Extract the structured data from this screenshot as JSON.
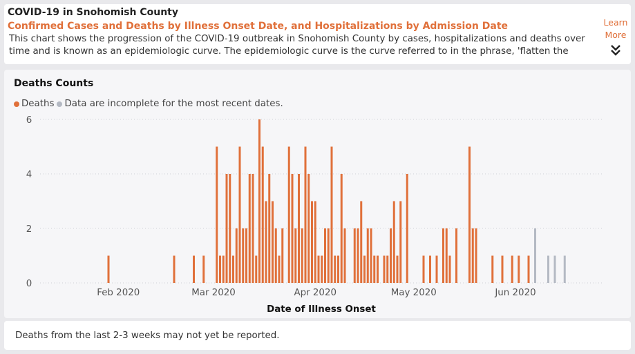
{
  "header": {
    "title": "COVID-19 in Snohomish County",
    "subtitle": "Confirmed Cases and Deaths by Illness Onset Date, and Hospitalizations by Admission Date",
    "description": "This chart shows the progression of the COVID-19 outbreak in Snohomish County by cases, hospitalizations and deaths over time and is known as an epidemiologic curve. The epidemiologic curve is the curve referred to in the phrase, 'flatten the curve'.",
    "learn_more": "Learn More",
    "expand_icon": "double-chevron-down-icon"
  },
  "chart_data": {
    "type": "bar",
    "title": "Deaths Counts",
    "xlabel": "Date of Illness Onset",
    "ylabel": "",
    "ylim": [
      0,
      6
    ],
    "yticks": [
      "0",
      "2",
      "4",
      "6"
    ],
    "xticks": [
      {
        "label": "Feb 2020",
        "date": "2020-02-01"
      },
      {
        "label": "Mar 2020",
        "date": "2020-03-01"
      },
      {
        "label": "Apr 2020",
        "date": "2020-04-01"
      },
      {
        "label": "May 2020",
        "date": "2020-05-01"
      },
      {
        "label": "Jun 2020",
        "date": "2020-06-01"
      }
    ],
    "legend_position": "top-left",
    "grid": true,
    "series": [
      {
        "name": "Deaths",
        "color": "#e0703a",
        "points": [
          [
            "2020-01-29",
            1
          ],
          [
            "2020-02-18",
            1
          ],
          [
            "2020-02-24",
            1
          ],
          [
            "2020-02-27",
            1
          ],
          [
            "2020-03-02",
            5
          ],
          [
            "2020-03-03",
            1
          ],
          [
            "2020-03-04",
            1
          ],
          [
            "2020-03-05",
            4
          ],
          [
            "2020-03-06",
            4
          ],
          [
            "2020-03-07",
            1
          ],
          [
            "2020-03-08",
            2
          ],
          [
            "2020-03-09",
            5
          ],
          [
            "2020-03-10",
            2
          ],
          [
            "2020-03-11",
            2
          ],
          [
            "2020-03-12",
            4
          ],
          [
            "2020-03-13",
            4
          ],
          [
            "2020-03-14",
            1
          ],
          [
            "2020-03-15",
            6
          ],
          [
            "2020-03-16",
            5
          ],
          [
            "2020-03-17",
            3
          ],
          [
            "2020-03-18",
            4
          ],
          [
            "2020-03-19",
            3
          ],
          [
            "2020-03-20",
            2
          ],
          [
            "2020-03-21",
            1
          ],
          [
            "2020-03-22",
            2
          ],
          [
            "2020-03-24",
            5
          ],
          [
            "2020-03-25",
            4
          ],
          [
            "2020-03-26",
            2
          ],
          [
            "2020-03-27",
            4
          ],
          [
            "2020-03-28",
            2
          ],
          [
            "2020-03-29",
            5
          ],
          [
            "2020-03-30",
            4
          ],
          [
            "2020-03-31",
            3
          ],
          [
            "2020-04-01",
            3
          ],
          [
            "2020-04-02",
            1
          ],
          [
            "2020-04-03",
            1
          ],
          [
            "2020-04-04",
            2
          ],
          [
            "2020-04-05",
            2
          ],
          [
            "2020-04-06",
            5
          ],
          [
            "2020-04-07",
            1
          ],
          [
            "2020-04-08",
            1
          ],
          [
            "2020-04-09",
            4
          ],
          [
            "2020-04-10",
            2
          ],
          [
            "2020-04-13",
            2
          ],
          [
            "2020-04-14",
            2
          ],
          [
            "2020-04-15",
            3
          ],
          [
            "2020-04-16",
            1
          ],
          [
            "2020-04-17",
            2
          ],
          [
            "2020-04-18",
            2
          ],
          [
            "2020-04-19",
            1
          ],
          [
            "2020-04-20",
            1
          ],
          [
            "2020-04-22",
            1
          ],
          [
            "2020-04-23",
            1
          ],
          [
            "2020-04-24",
            2
          ],
          [
            "2020-04-25",
            3
          ],
          [
            "2020-04-26",
            1
          ],
          [
            "2020-04-27",
            3
          ],
          [
            "2020-04-29",
            4
          ],
          [
            "2020-05-04",
            1
          ],
          [
            "2020-05-06",
            1
          ],
          [
            "2020-05-08",
            1
          ],
          [
            "2020-05-10",
            2
          ],
          [
            "2020-05-11",
            2
          ],
          [
            "2020-05-12",
            1
          ],
          [
            "2020-05-14",
            2
          ],
          [
            "2020-05-18",
            5
          ],
          [
            "2020-05-19",
            2
          ],
          [
            "2020-05-20",
            2
          ],
          [
            "2020-05-25",
            1
          ],
          [
            "2020-05-28",
            1
          ],
          [
            "2020-05-31",
            1
          ],
          [
            "2020-06-02",
            1
          ],
          [
            "2020-06-05",
            1
          ]
        ]
      },
      {
        "name": "Data are incomplete for the most recent dates.",
        "color": "#b4b9c3",
        "points": [
          [
            "2020-06-07",
            2
          ],
          [
            "2020-06-11",
            1
          ],
          [
            "2020-06-13",
            1
          ],
          [
            "2020-06-16",
            1
          ]
        ]
      }
    ]
  },
  "footer": {
    "note": "Deaths from the last 2-3 weeks may not yet be reported."
  }
}
